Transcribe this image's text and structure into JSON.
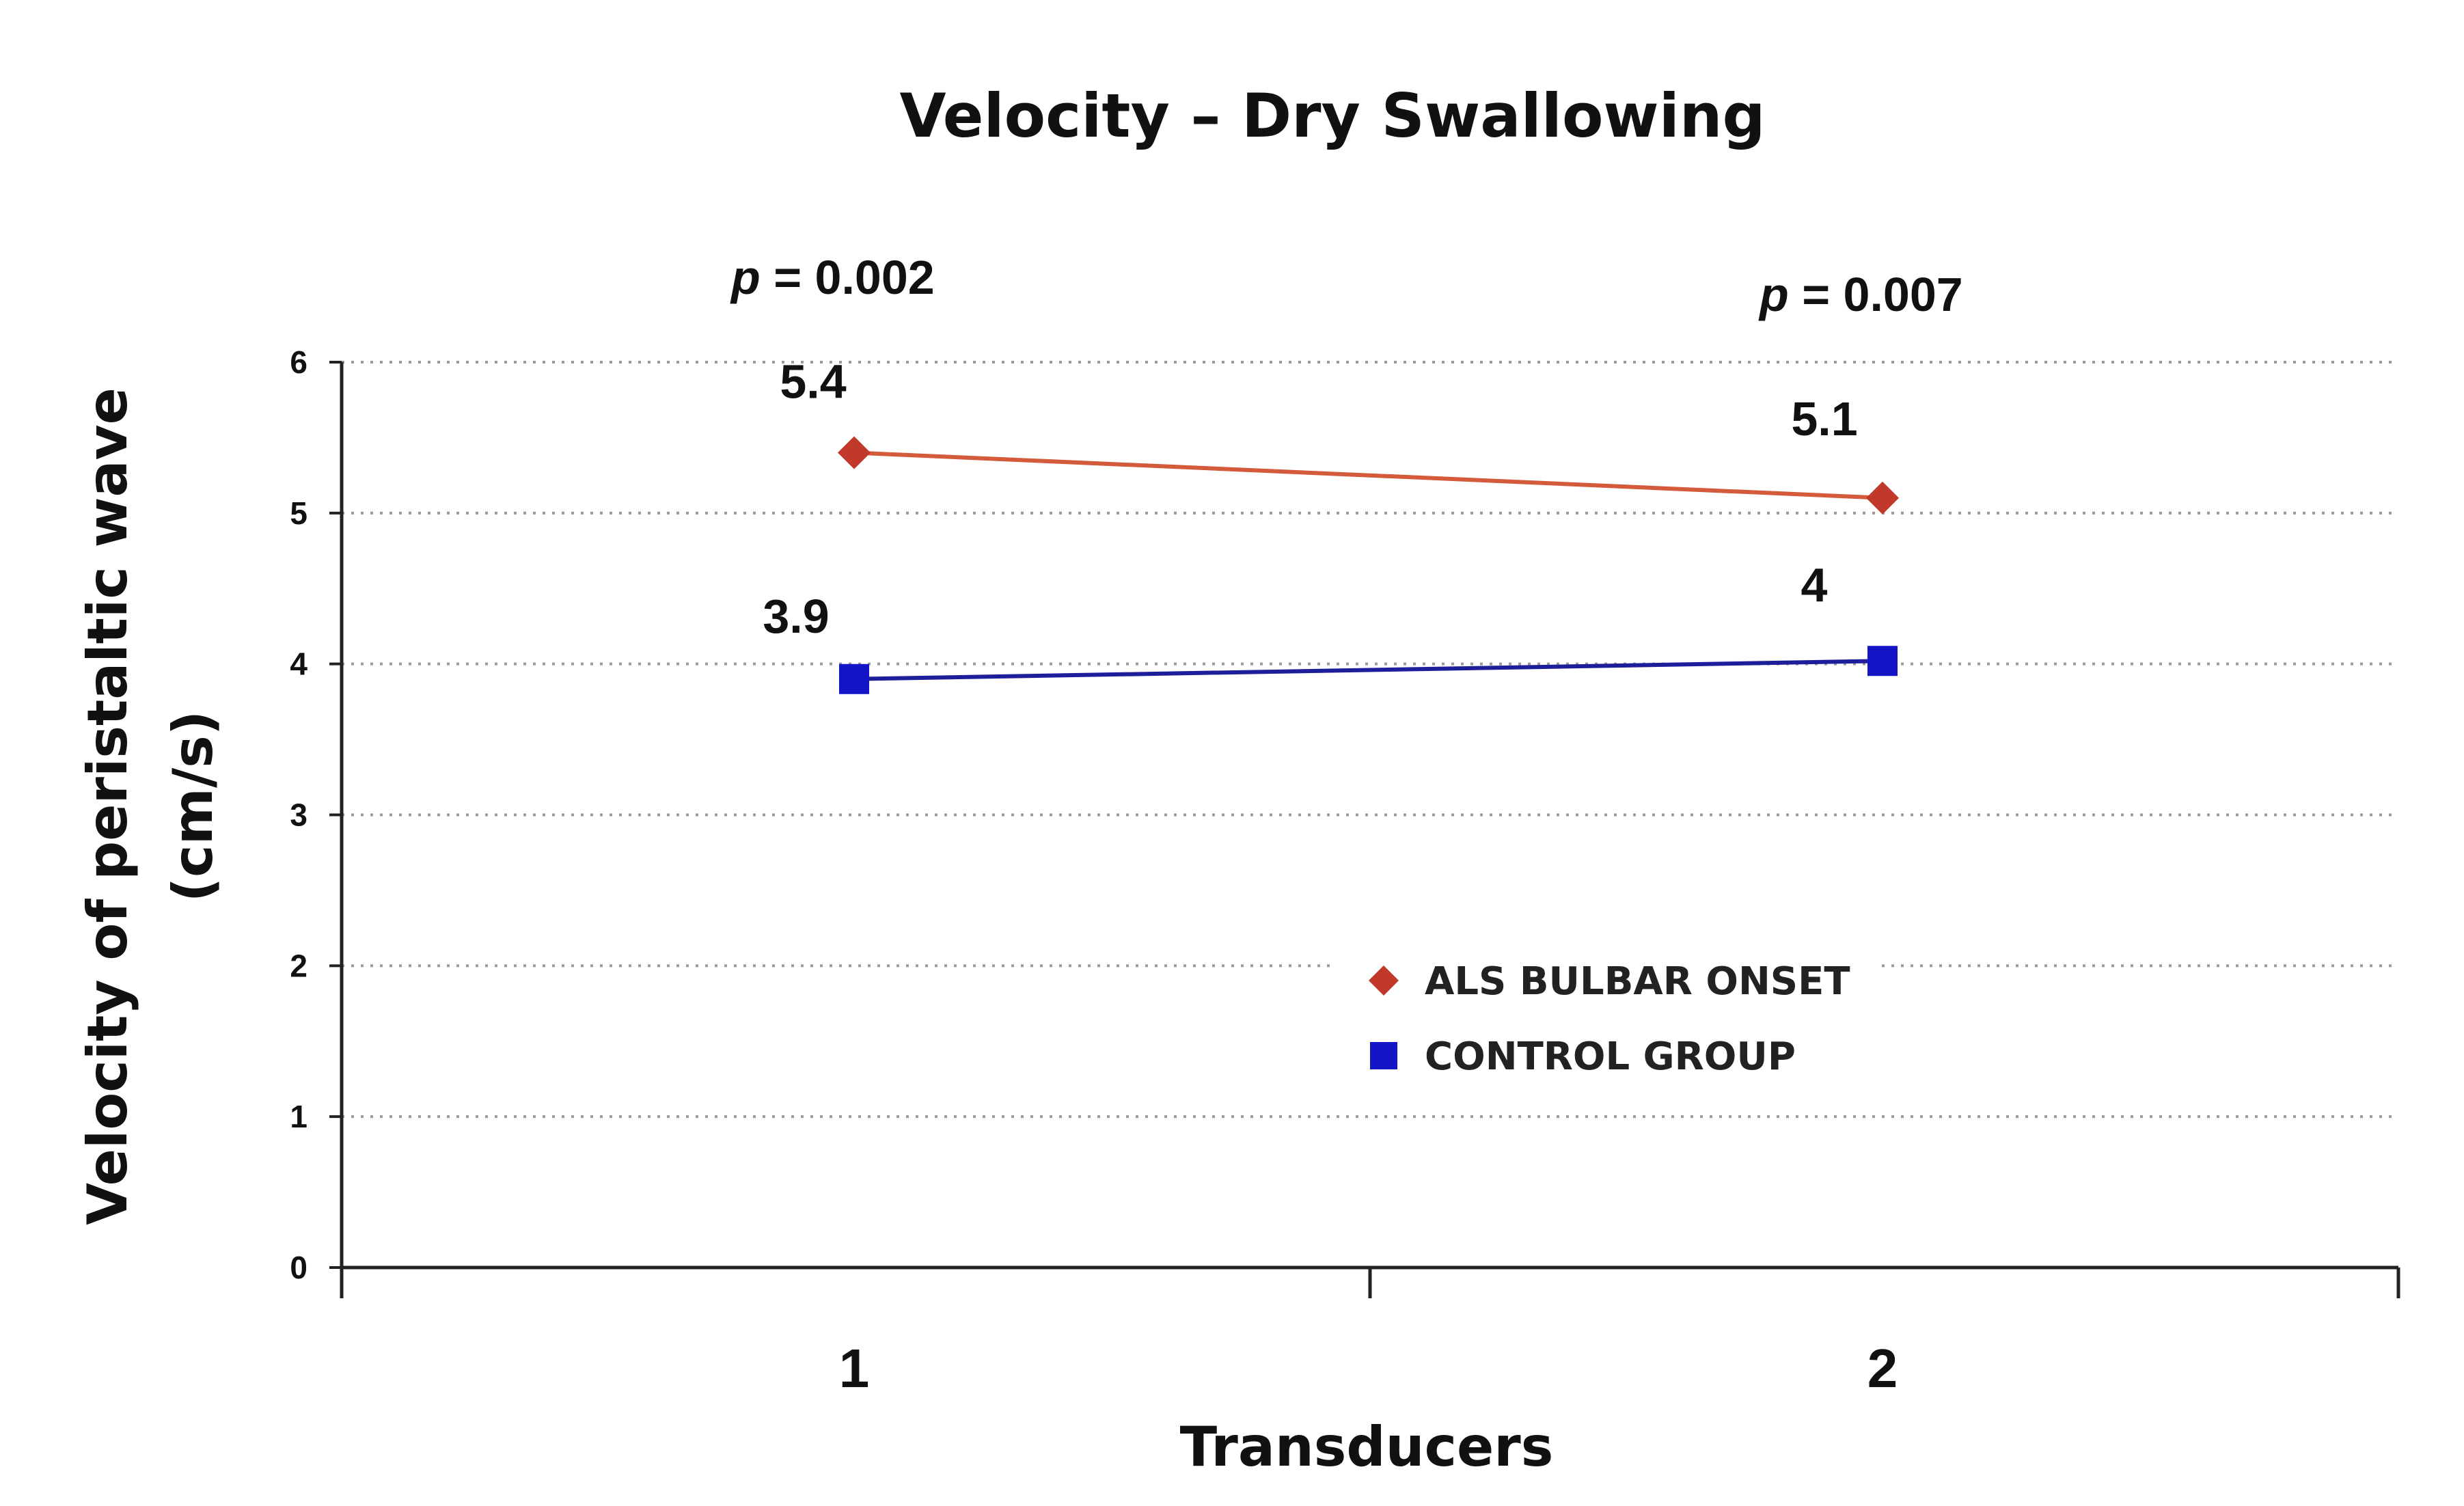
{
  "chart_data": {
    "type": "line",
    "title": "Velocity – Dry Swallowing",
    "xlabel": "Transducers",
    "ylabel_lines": [
      "Velocity of peristaltic wave",
      "(cm/s)"
    ],
    "categories": [
      "1",
      "2"
    ],
    "ylim": [
      0,
      6
    ],
    "y_ticks": [
      "0",
      "1",
      "2",
      "3",
      "4",
      "5",
      "6"
    ],
    "grid": "horizontal dotted",
    "series": [
      {
        "name": "ALS BULBAR ONSET",
        "values": [
          5.4,
          5.1
        ],
        "labels": [
          "5.4",
          "5.1"
        ],
        "color": "#c0392b",
        "line_color": "#d35a3a",
        "marker": "diamond"
      },
      {
        "name": "CONTROL GROUP",
        "values": [
          3.9,
          4.02
        ],
        "labels": [
          "3.9",
          "4"
        ],
        "color": "#1515c8",
        "line_color": "#1e1e9a",
        "marker": "square"
      }
    ],
    "annotations": [
      {
        "category": "1",
        "italic": "p",
        "rest": " = 0.002"
      },
      {
        "category": "2",
        "italic": "p",
        "rest": " = 0.007"
      }
    ],
    "legend_position": "center-right"
  }
}
